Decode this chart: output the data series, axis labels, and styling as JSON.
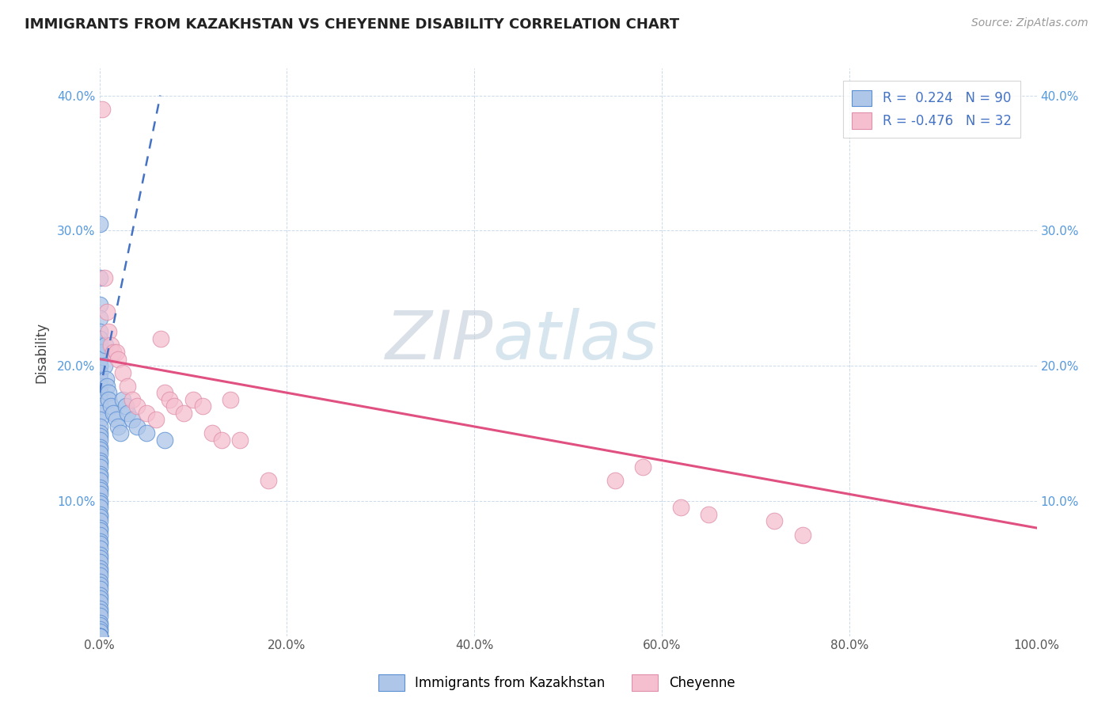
{
  "title": "IMMIGRANTS FROM KAZAKHSTAN VS CHEYENNE DISABILITY CORRELATION CHART",
  "source_text": "Source: ZipAtlas.com",
  "ylabel": "Disability",
  "legend_label_1": "Immigrants from Kazakhstan",
  "legend_label_2": "Cheyenne",
  "r1": 0.224,
  "n1": 90,
  "r2": -0.476,
  "n2": 32,
  "color_blue_fill": "#aec6e8",
  "color_blue_edge": "#5b8fd4",
  "color_pink_fill": "#f5bfcf",
  "color_pink_edge": "#e090aa",
  "color_blue_line": "#4472c4",
  "color_pink_line": "#e05080",
  "watermark_zip": "ZIP",
  "watermark_atlas": "atlas",
  "xlim": [
    0.0,
    1.0
  ],
  "ylim": [
    0.0,
    0.42
  ],
  "blue_trend_x": [
    0.0,
    0.065
  ],
  "blue_trend_y": [
    0.18,
    0.4
  ],
  "pink_trend_x": [
    0.0,
    1.0
  ],
  "pink_trend_y": [
    0.205,
    0.08
  ],
  "blue_x": [
    0.0,
    0.0,
    0.0,
    0.0,
    0.0,
    0.0,
    0.0,
    0.0,
    0.0,
    0.0,
    0.0,
    0.0,
    0.0,
    0.0,
    0.0,
    0.0,
    0.0,
    0.0,
    0.0,
    0.0,
    0.0,
    0.0,
    0.0,
    0.0,
    0.0,
    0.0,
    0.0,
    0.0,
    0.0,
    0.0,
    0.0,
    0.0,
    0.0,
    0.0,
    0.0,
    0.0,
    0.0,
    0.0,
    0.0,
    0.0,
    0.0,
    0.0,
    0.0,
    0.0,
    0.0,
    0.0,
    0.0,
    0.0,
    0.0,
    0.0,
    0.0,
    0.0,
    0.0,
    0.0,
    0.0,
    0.0,
    0.0,
    0.0,
    0.0,
    0.0,
    0.0,
    0.0,
    0.0,
    0.0,
    0.0,
    0.0,
    0.0,
    0.0,
    0.0,
    0.0,
    0.0,
    0.003,
    0.005,
    0.006,
    0.007,
    0.008,
    0.01,
    0.01,
    0.012,
    0.015,
    0.018,
    0.02,
    0.022,
    0.025,
    0.028,
    0.03,
    0.035,
    0.04,
    0.05,
    0.07
  ],
  "blue_y": [
    0.305,
    0.265,
    0.245,
    0.235,
    0.225,
    0.215,
    0.21,
    0.205,
    0.2,
    0.195,
    0.19,
    0.185,
    0.18,
    0.175,
    0.17,
    0.165,
    0.16,
    0.155,
    0.15,
    0.148,
    0.145,
    0.14,
    0.138,
    0.135,
    0.13,
    0.128,
    0.125,
    0.12,
    0.118,
    0.115,
    0.11,
    0.108,
    0.105,
    0.1,
    0.098,
    0.095,
    0.09,
    0.088,
    0.085,
    0.08,
    0.078,
    0.075,
    0.07,
    0.068,
    0.065,
    0.06,
    0.058,
    0.055,
    0.05,
    0.048,
    0.045,
    0.04,
    0.038,
    0.035,
    0.03,
    0.028,
    0.025,
    0.02,
    0.018,
    0.015,
    0.01,
    0.008,
    0.005,
    0.003,
    0.0,
    0.0,
    0.0,
    0.0,
    0.0,
    0.0,
    0.22,
    0.21,
    0.2,
    0.215,
    0.19,
    0.185,
    0.18,
    0.175,
    0.17,
    0.165,
    0.16,
    0.155,
    0.15,
    0.175,
    0.17,
    0.165,
    0.16,
    0.155,
    0.15,
    0.145
  ],
  "pink_x": [
    0.003,
    0.005,
    0.008,
    0.01,
    0.012,
    0.015,
    0.018,
    0.02,
    0.025,
    0.03,
    0.035,
    0.04,
    0.05,
    0.06,
    0.065,
    0.07,
    0.075,
    0.08,
    0.09,
    0.1,
    0.11,
    0.12,
    0.13,
    0.14,
    0.15,
    0.18,
    0.55,
    0.58,
    0.62,
    0.65,
    0.72,
    0.75
  ],
  "pink_y": [
    0.39,
    0.265,
    0.24,
    0.225,
    0.215,
    0.21,
    0.21,
    0.205,
    0.195,
    0.185,
    0.175,
    0.17,
    0.165,
    0.16,
    0.22,
    0.18,
    0.175,
    0.17,
    0.165,
    0.175,
    0.17,
    0.15,
    0.145,
    0.175,
    0.145,
    0.115,
    0.115,
    0.125,
    0.095,
    0.09,
    0.085,
    0.075
  ]
}
